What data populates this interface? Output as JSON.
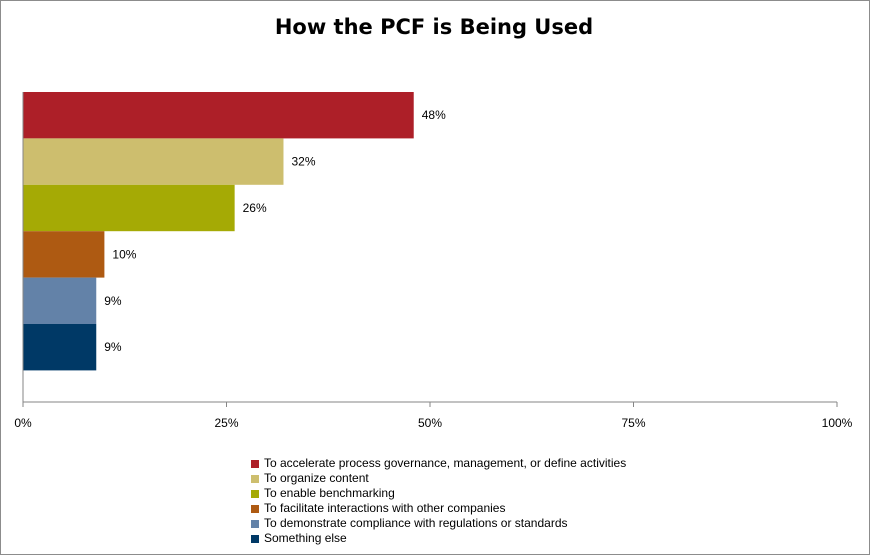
{
  "chart_data": {
    "type": "bar",
    "orientation": "horizontal",
    "title": "How the PCF is Being Used",
    "categories": [
      "To accelerate process governance, management, or define activities",
      "To organize content",
      "To enable benchmarking",
      "To facilitate interactions with other companies",
      "To demonstrate compliance with regulations or standards",
      "Something else"
    ],
    "values": [
      48,
      32,
      26,
      10,
      9,
      9
    ],
    "data_labels": [
      "48%",
      "32%",
      "26%",
      "10%",
      "9%",
      "9%"
    ],
    "colors": [
      "#AD1F28",
      "#CDBE6E",
      "#A5AA05",
      "#AE5A12",
      "#6382A8",
      "#003966"
    ],
    "xlim": [
      0,
      100
    ],
    "xticks": [
      0,
      25,
      50,
      75,
      100
    ],
    "xtick_labels": [
      "0%",
      "25%",
      "50%",
      "75%",
      "100%"
    ],
    "grid": false,
    "legend_position": "bottom"
  }
}
